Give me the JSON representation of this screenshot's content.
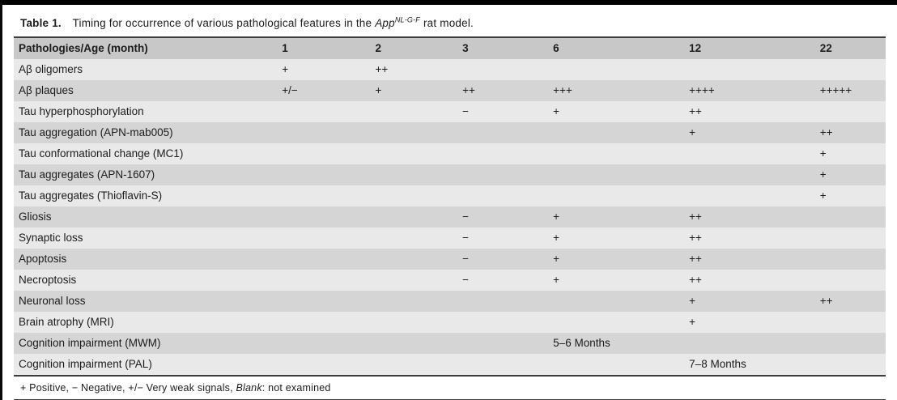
{
  "colors": {
    "header_row_bg": "#c8c8c8",
    "row_dark_bg": "#d5d5d5",
    "row_light_bg": "#e9e9e9",
    "rule_color": "#3c3c3c",
    "page_background": "#ffffff",
    "text_color": "#1c1c1c"
  },
  "table": {
    "caption": {
      "label": "Table 1.",
      "text": "Timing for occurrence of various pathological features in the",
      "gene_italic": "App",
      "gene_superscript": "NL-G-F",
      "text_after": "rat model."
    },
    "header": {
      "columns": [
        "Pathologies/Age (month)",
        "1",
        "2",
        "3",
        "6",
        "12",
        "22"
      ]
    },
    "rows": [
      {
        "label": "Aβ oligomers",
        "values": [
          "+",
          "++",
          "",
          "",
          "",
          ""
        ]
      },
      {
        "label": "Aβ plaques",
        "values": [
          "+/−",
          "+",
          "++",
          "+++",
          "++++",
          "+++++"
        ]
      },
      {
        "label": "Tau hyperphosphorylation",
        "values": [
          "",
          "",
          "−",
          "+",
          "++",
          ""
        ]
      },
      {
        "label": "Tau aggregation (APN-mab005)",
        "values": [
          "",
          "",
          "",
          "",
          "+",
          "++"
        ]
      },
      {
        "label": "Tau conformational change (MC1)",
        "values": [
          "",
          "",
          "",
          "",
          "",
          "+"
        ]
      },
      {
        "label": "Tau aggregates (APN-1607)",
        "values": [
          "",
          "",
          "",
          "",
          "",
          "+"
        ]
      },
      {
        "label": "Tau aggregates (Thioflavin-S)",
        "values": [
          "",
          "",
          "",
          "",
          "",
          "+"
        ]
      },
      {
        "label": "Gliosis",
        "values": [
          "",
          "",
          "−",
          "+",
          "++",
          ""
        ]
      },
      {
        "label": "Synaptic loss",
        "values": [
          "",
          "",
          "−",
          "+",
          "++",
          ""
        ]
      },
      {
        "label": "Apoptosis",
        "values": [
          "",
          "",
          "−",
          "+",
          "++",
          ""
        ]
      },
      {
        "label": "Necroptosis",
        "values": [
          "",
          "",
          "−",
          "+",
          "++",
          ""
        ]
      },
      {
        "label": "Neuronal loss",
        "values": [
          "",
          "",
          "",
          "",
          "+",
          "++"
        ]
      },
      {
        "label": "Brain atrophy (MRI)",
        "values": [
          "",
          "",
          "",
          "",
          "+",
          ""
        ]
      },
      {
        "label": "Cognition impairment (MWM)",
        "values": [
          "",
          "",
          "",
          "5–6 Months",
          "",
          ""
        ]
      },
      {
        "label": "Cognition impairment (PAL)",
        "values": [
          "",
          "",
          "",
          "",
          "7–8 Months",
          ""
        ]
      }
    ],
    "footnote": {
      "symbols": "+ Positive, − Negative, +/− Very weak signals,",
      "blank_word": "Blank",
      "rest": ": not examined"
    }
  }
}
